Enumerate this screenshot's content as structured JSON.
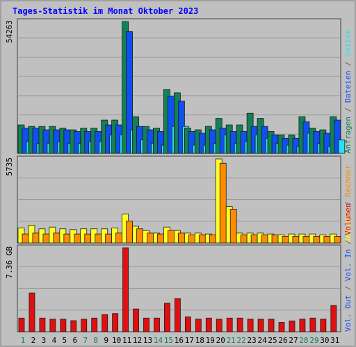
{
  "title": "Tages-Statistik im Monat Oktober 2023",
  "colors": {
    "background": "#ffffff",
    "frame": "#c0c0c0",
    "panel": "#c0c0c0",
    "title": "#0000ff",
    "anfragen": "#128256",
    "dateien": "#1050f0",
    "seiten": "#28e0f0",
    "besuche": "#ffff28",
    "rechner": "#ff8c00",
    "volumen": "#e01010",
    "separator": "#606060",
    "weekday": "#000000",
    "weekend": "#128256"
  },
  "days": [
    "1",
    "2",
    "3",
    "4",
    "5",
    "6",
    "7",
    "8",
    "9",
    "10",
    "11",
    "12",
    "13",
    "14",
    "15",
    "16",
    "17",
    "18",
    "19",
    "20",
    "21",
    "22",
    "23",
    "24",
    "25",
    "26",
    "27",
    "28",
    "29",
    "30",
    "31"
  ],
  "weekend_days": [
    "1",
    "7",
    "8",
    "14",
    "15",
    "21",
    "22",
    "28",
    "29"
  ],
  "right_labels": {
    "top": [
      {
        "text": "Anfragen",
        "color_key": "anfragen"
      },
      {
        "text": "Dateien",
        "color_key": "dateien"
      },
      {
        "text": "Seiten",
        "color_key": "seiten"
      },
      {
        "text": "Besuche",
        "color_key": "besuche"
      },
      {
        "text": "Rechner",
        "color_key": "rechner"
      },
      {
        "text": "Vol. Out",
        "color_key": "dateien"
      },
      {
        "text": "Vol. In",
        "color_key": "dateien"
      },
      {
        "text": "Volumen",
        "color_key": "volumen"
      }
    ]
  },
  "chart_data": [
    {
      "type": "bar",
      "panel": "top",
      "ymax_label": "54263",
      "ylim": [
        0,
        54263
      ],
      "categories": [
        "1",
        "2",
        "3",
        "4",
        "5",
        "6",
        "7",
        "8",
        "9",
        "10",
        "11",
        "12",
        "13",
        "14",
        "15",
        "16",
        "17",
        "18",
        "19",
        "20",
        "21",
        "22",
        "23",
        "24",
        "25",
        "26",
        "27",
        "28",
        "29",
        "30",
        "31"
      ],
      "series": [
        {
          "name": "Anfragen",
          "color_key": "anfragen",
          "values": [
            11700,
            11100,
            11100,
            11100,
            10400,
            9700,
            10400,
            10400,
            13700,
            13700,
            54263,
            15100,
            11100,
            10400,
            26300,
            24900,
            10400,
            9700,
            11100,
            14400,
            11700,
            11700,
            16500,
            14400,
            9000,
            7600,
            7600,
            15100,
            10400,
            9700,
            15100
          ]
        },
        {
          "name": "Dateien",
          "color_key": "dateien",
          "values": [
            10400,
            10400,
            9700,
            9700,
            9700,
            9000,
            9000,
            9000,
            11700,
            11700,
            50100,
            11100,
            9700,
            9000,
            23500,
            21500,
            9000,
            8300,
            9700,
            10400,
            9000,
            9000,
            11100,
            11100,
            7600,
            6200,
            6200,
            13000,
            9000,
            8300,
            13700
          ]
        },
        {
          "name": "Seiten",
          "color_key": "seiten",
          "values": [
            4800,
            4100,
            4100,
            4800,
            4100,
            4100,
            4800,
            4800,
            7600,
            7600,
            9700,
            5500,
            4100,
            3400,
            11100,
            11100,
            3400,
            3400,
            4100,
            7600,
            4100,
            4800,
            7600,
            6200,
            4100,
            3400,
            2800,
            8300,
            4100,
            2800,
            5500
          ]
        }
      ]
    },
    {
      "type": "bar",
      "panel": "middle",
      "ymax_label": "5735",
      "ylim": [
        0,
        5735
      ],
      "categories": [
        "1",
        "2",
        "3",
        "4",
        "5",
        "6",
        "7",
        "8",
        "9",
        "10",
        "11",
        "12",
        "13",
        "14",
        "15",
        "16",
        "17",
        "18",
        "19",
        "20",
        "21",
        "22",
        "23",
        "24",
        "25",
        "26",
        "27",
        "28",
        "29",
        "30",
        "31"
      ],
      "series": [
        {
          "name": "Besuche",
          "color_key": "besuche",
          "values": [
            1020,
            1200,
            960,
            1080,
            960,
            910,
            960,
            960,
            960,
            1020,
            1980,
            1140,
            850,
            670,
            1080,
            850,
            670,
            670,
            610,
            5735,
            2480,
            670,
            670,
            670,
            610,
            550,
            610,
            610,
            610,
            550,
            610
          ]
        },
        {
          "name": "Rechner",
          "color_key": "rechner",
          "values": [
            610,
            670,
            610,
            670,
            610,
            610,
            610,
            610,
            610,
            670,
            1500,
            960,
            670,
            610,
            850,
            670,
            550,
            550,
            550,
            5440,
            2300,
            550,
            550,
            550,
            550,
            450,
            450,
            450,
            450,
            450,
            450
          ]
        }
      ]
    },
    {
      "type": "bar",
      "panel": "bottom",
      "ymax_label": "7.36 GB",
      "ylim": [
        0,
        7.36
      ],
      "categories": [
        "1",
        "2",
        "3",
        "4",
        "5",
        "6",
        "7",
        "8",
        "9",
        "10",
        "11",
        "12",
        "13",
        "14",
        "15",
        "16",
        "17",
        "18",
        "19",
        "20",
        "21",
        "22",
        "23",
        "24",
        "25",
        "26",
        "27",
        "28",
        "29",
        "30",
        "31"
      ],
      "series": [
        {
          "name": "Volumen",
          "color_key": "volumen",
          "values": [
            1.2,
            3.4,
            1.2,
            1.1,
            1.1,
            0.97,
            1.1,
            1.2,
            1.5,
            1.6,
            7.36,
            2.0,
            1.2,
            1.2,
            2.5,
            2.9,
            1.3,
            1.1,
            1.2,
            1.1,
            1.2,
            1.2,
            1.1,
            1.1,
            1.1,
            0.82,
            0.95,
            1.1,
            1.2,
            1.1,
            2.3
          ]
        }
      ]
    }
  ]
}
